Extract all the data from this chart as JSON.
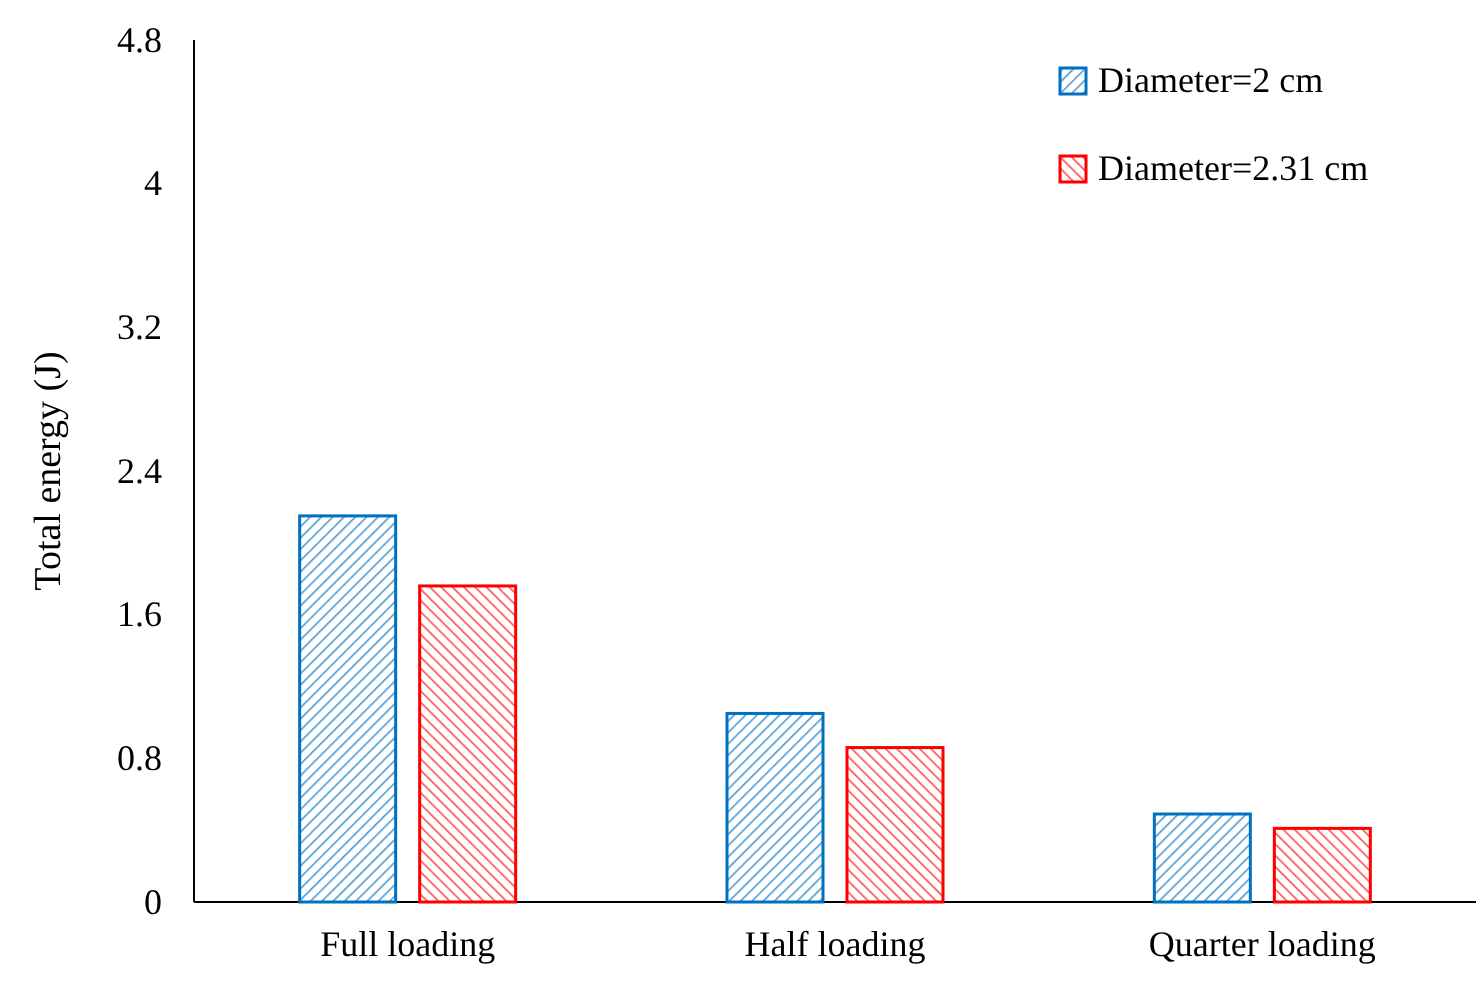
{
  "chart_data": {
    "type": "bar",
    "ylabel": "Total energy (J)",
    "categories": [
      "Full loading",
      "Half loading",
      "Quarter loading"
    ],
    "series": [
      {
        "name": "Diameter=2 cm",
        "color": "#0070c0",
        "values": [
          2.15,
          1.05,
          0.49
        ]
      },
      {
        "name": "Diameter=2.31 cm",
        "color": "#ff0000",
        "values": [
          1.76,
          0.86,
          0.41
        ]
      }
    ],
    "ylim": [
      0,
      4.8
    ],
    "yticks": [
      0,
      0.8,
      1.6,
      2.4,
      3.2,
      4,
      4.8
    ],
    "grid": false,
    "legend": "top right"
  }
}
